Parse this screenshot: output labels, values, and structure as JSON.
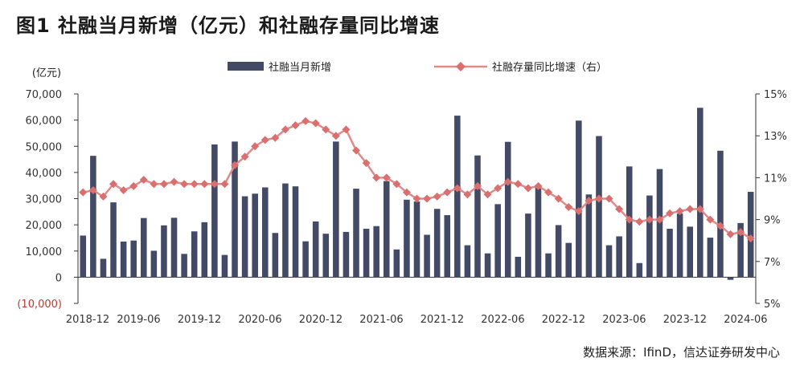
{
  "title": "图1 社融当月新增（亿元）和社融存量同比增速",
  "source": "数据来源：IfinD，信达证券研发中心",
  "colors": {
    "bar": "#434a66",
    "line": "#e08a8a",
    "marker": "#d96f6f"
  },
  "chart_data": {
    "type": "bar",
    "y_unit": "(亿元)",
    "y_left_ticks": [
      "70,000",
      "60,000",
      "50,000",
      "40,000",
      "30,000",
      "20,000",
      "10,000",
      "0",
      "(10,000)"
    ],
    "y_right_ticks": [
      "15%",
      "13%",
      "11%",
      "9%",
      "7%",
      "5%"
    ],
    "ylim_left": [
      -10000,
      70000
    ],
    "ylim_right": [
      5,
      15
    ],
    "x_tick_labels": [
      "2018-12",
      "2019-06",
      "2019-12",
      "2020-06",
      "2020-12",
      "2021-06",
      "2021-12",
      "2022-06",
      "2022-12",
      "2023-06",
      "2023-12",
      "2024-06"
    ],
    "categories": [
      "2018-12",
      "2019-01",
      "2019-02",
      "2019-03",
      "2019-04",
      "2019-05",
      "2019-06",
      "2019-07",
      "2019-08",
      "2019-09",
      "2019-10",
      "2019-11",
      "2019-12",
      "2020-01",
      "2020-02",
      "2020-03",
      "2020-04",
      "2020-05",
      "2020-06",
      "2020-07",
      "2020-08",
      "2020-09",
      "2020-10",
      "2020-11",
      "2020-12",
      "2021-01",
      "2021-02",
      "2021-03",
      "2021-04",
      "2021-05",
      "2021-06",
      "2021-07",
      "2021-08",
      "2021-09",
      "2021-10",
      "2021-11",
      "2021-12",
      "2022-01",
      "2022-02",
      "2022-03",
      "2022-04",
      "2022-05",
      "2022-06",
      "2022-07",
      "2022-08",
      "2022-09",
      "2022-10",
      "2022-11",
      "2022-12",
      "2023-01",
      "2023-02",
      "2023-03",
      "2023-04",
      "2023-05",
      "2023-06",
      "2023-07",
      "2023-08",
      "2023-09",
      "2023-10",
      "2023-11",
      "2023-12",
      "2024-01",
      "2024-02",
      "2024-03",
      "2024-04",
      "2024-05",
      "2024-06"
    ],
    "series": [
      {
        "name": "社融当月新增",
        "type": "bar",
        "axis": "left",
        "values": [
          15898,
          46353,
          7030,
          28590,
          13600,
          14000,
          22600,
          10100,
          19800,
          22700,
          8900,
          17500,
          21000,
          50700,
          8500,
          51800,
          30900,
          31900,
          34300,
          16900,
          35800,
          34700,
          13700,
          21300,
          16600,
          51800,
          17300,
          33800,
          18500,
          19500,
          36700,
          10600,
          29600,
          28900,
          16200,
          26100,
          23700,
          61700,
          12200,
          46500,
          9100,
          27900,
          51700,
          7800,
          24300,
          35300,
          9100,
          19900,
          13100,
          59800,
          31600,
          53900,
          12200,
          15600,
          42300,
          5400,
          31200,
          41300,
          18500,
          24300,
          19300,
          64700,
          15100,
          48300,
          -1000,
          20700,
          32600
        ]
      },
      {
        "name": "社融存量同比增速（右）",
        "type": "line",
        "axis": "right",
        "values": [
          10.3,
          10.4,
          10.1,
          10.7,
          10.4,
          10.6,
          10.9,
          10.7,
          10.7,
          10.8,
          10.7,
          10.7,
          10.7,
          10.7,
          10.7,
          11.6,
          12.0,
          12.5,
          12.8,
          12.9,
          13.3,
          13.5,
          13.7,
          13.6,
          13.3,
          13.0,
          13.3,
          12.3,
          11.7,
          11.0,
          11.0,
          10.7,
          10.3,
          10.0,
          10.0,
          10.1,
          10.3,
          10.5,
          10.2,
          10.6,
          10.2,
          10.5,
          10.8,
          10.7,
          10.5,
          10.6,
          10.3,
          10.0,
          9.6,
          9.4,
          9.9,
          10.0,
          10.0,
          9.5,
          9.0,
          8.9,
          9.0,
          9.0,
          9.3,
          9.4,
          9.5,
          9.5,
          9.0,
          8.7,
          8.3,
          8.4,
          8.1
        ]
      }
    ],
    "grid": false,
    "legend_position": "top-center"
  }
}
